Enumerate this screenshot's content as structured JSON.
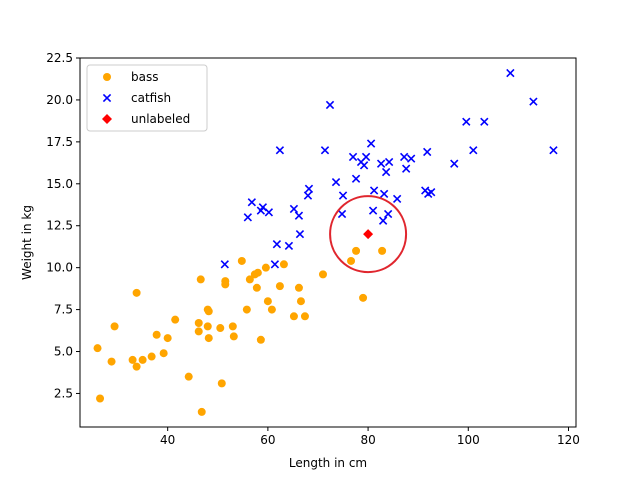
{
  "chart_data": {
    "type": "scatter",
    "xlabel": "Length in cm",
    "ylabel": "Weight in kg",
    "xlim": [
      22.5,
      121.5
    ],
    "ylim": [
      0.5,
      22.5
    ],
    "xticks": [
      20,
      40,
      60,
      80,
      100,
      120
    ],
    "yticks": [
      2.5,
      5.0,
      7.5,
      10.0,
      12.5,
      15.0,
      17.5,
      20.0,
      22.5
    ],
    "grid": false,
    "legend": "top-left",
    "series": [
      {
        "name": "bass",
        "marker": "circle",
        "color": "#ffa500",
        "points": [
          [
            26,
            5.2
          ],
          [
            26.5,
            2.2
          ],
          [
            28.8,
            4.4
          ],
          [
            29.4,
            6.5
          ],
          [
            33,
            4.5
          ],
          [
            33.8,
            4.1
          ],
          [
            33.8,
            8.5
          ],
          [
            35,
            4.5
          ],
          [
            36.8,
            4.7
          ],
          [
            37.8,
            6.0
          ],
          [
            39.2,
            4.9
          ],
          [
            40,
            5.8
          ],
          [
            41.5,
            6.9
          ],
          [
            44.2,
            3.5
          ],
          [
            46.2,
            6.2
          ],
          [
            46.2,
            6.7
          ],
          [
            46.6,
            9.3
          ],
          [
            46.8,
            1.4
          ],
          [
            48,
            7.5
          ],
          [
            48,
            6.5
          ],
          [
            48.2,
            5.8
          ],
          [
            48.2,
            7.4
          ],
          [
            50.5,
            6.4
          ],
          [
            50.8,
            3.1
          ],
          [
            51.5,
            9.2
          ],
          [
            51.5,
            9.0
          ],
          [
            53,
            6.5
          ],
          [
            53.2,
            5.9
          ],
          [
            54.8,
            10.4
          ],
          [
            55.8,
            7.5
          ],
          [
            56.4,
            9.3
          ],
          [
            57.4,
            9.6
          ],
          [
            57.8,
            8.8
          ],
          [
            58,
            9.7
          ],
          [
            58.6,
            5.7
          ],
          [
            59.6,
            10.0
          ],
          [
            60,
            8.0
          ],
          [
            60.8,
            7.5
          ],
          [
            62.4,
            8.9
          ],
          [
            63.2,
            10.2
          ],
          [
            65.2,
            7.1
          ],
          [
            66.2,
            8.8
          ],
          [
            66.6,
            8.0
          ],
          [
            67.4,
            7.1
          ],
          [
            71,
            9.6
          ],
          [
            76.6,
            10.4
          ],
          [
            77.6,
            11.0
          ],
          [
            79,
            8.2
          ],
          [
            82.8,
            11.0
          ]
        ]
      },
      {
        "name": "catfish",
        "marker": "x",
        "color": "#0000ff",
        "points": [
          [
            51.4,
            10.2
          ],
          [
            56,
            13.0
          ],
          [
            56.8,
            13.9
          ],
          [
            58.6,
            13.4
          ],
          [
            59,
            13.6
          ],
          [
            60.2,
            13.3
          ],
          [
            61.4,
            10.2
          ],
          [
            61.8,
            11.4
          ],
          [
            62.4,
            17.0
          ],
          [
            64.2,
            11.3
          ],
          [
            65.2,
            13.5
          ],
          [
            66.2,
            13.1
          ],
          [
            66.4,
            12.0
          ],
          [
            68,
            14.3
          ],
          [
            68.2,
            14.7
          ],
          [
            71.4,
            17.0
          ],
          [
            72.4,
            19.7
          ],
          [
            73.6,
            15.1
          ],
          [
            74.8,
            13.2
          ],
          [
            75,
            14.3
          ],
          [
            77,
            16.6
          ],
          [
            77.6,
            15.3
          ],
          [
            78.6,
            16.3
          ],
          [
            79.2,
            16.1
          ],
          [
            79.6,
            16.6
          ],
          [
            80.6,
            17.4
          ],
          [
            81,
            13.4
          ],
          [
            81.2,
            14.6
          ],
          [
            82.6,
            16.2
          ],
          [
            83,
            12.8
          ],
          [
            83.2,
            14.4
          ],
          [
            83.6,
            15.7
          ],
          [
            84,
            13.2
          ],
          [
            84.2,
            16.3
          ],
          [
            85.8,
            14.1
          ],
          [
            87.2,
            16.6
          ],
          [
            87.6,
            15.9
          ],
          [
            88.6,
            16.5
          ],
          [
            91.4,
            14.6
          ],
          [
            91.8,
            16.9
          ],
          [
            92,
            14.4
          ],
          [
            92.6,
            14.5
          ],
          [
            97.2,
            16.2
          ],
          [
            99.6,
            18.7
          ],
          [
            101,
            17.0
          ],
          [
            103.2,
            18.7
          ],
          [
            108.4,
            21.6
          ],
          [
            113,
            19.9
          ],
          [
            117,
            17.0
          ]
        ]
      },
      {
        "name": "unlabeled",
        "marker": "diamond",
        "color": "#ff0000",
        "points": [
          [
            80,
            12.0
          ]
        ]
      }
    ],
    "annotations": [
      {
        "type": "circle-highlight",
        "center": [
          80,
          12.0
        ],
        "color": "#e0262e"
      }
    ]
  }
}
